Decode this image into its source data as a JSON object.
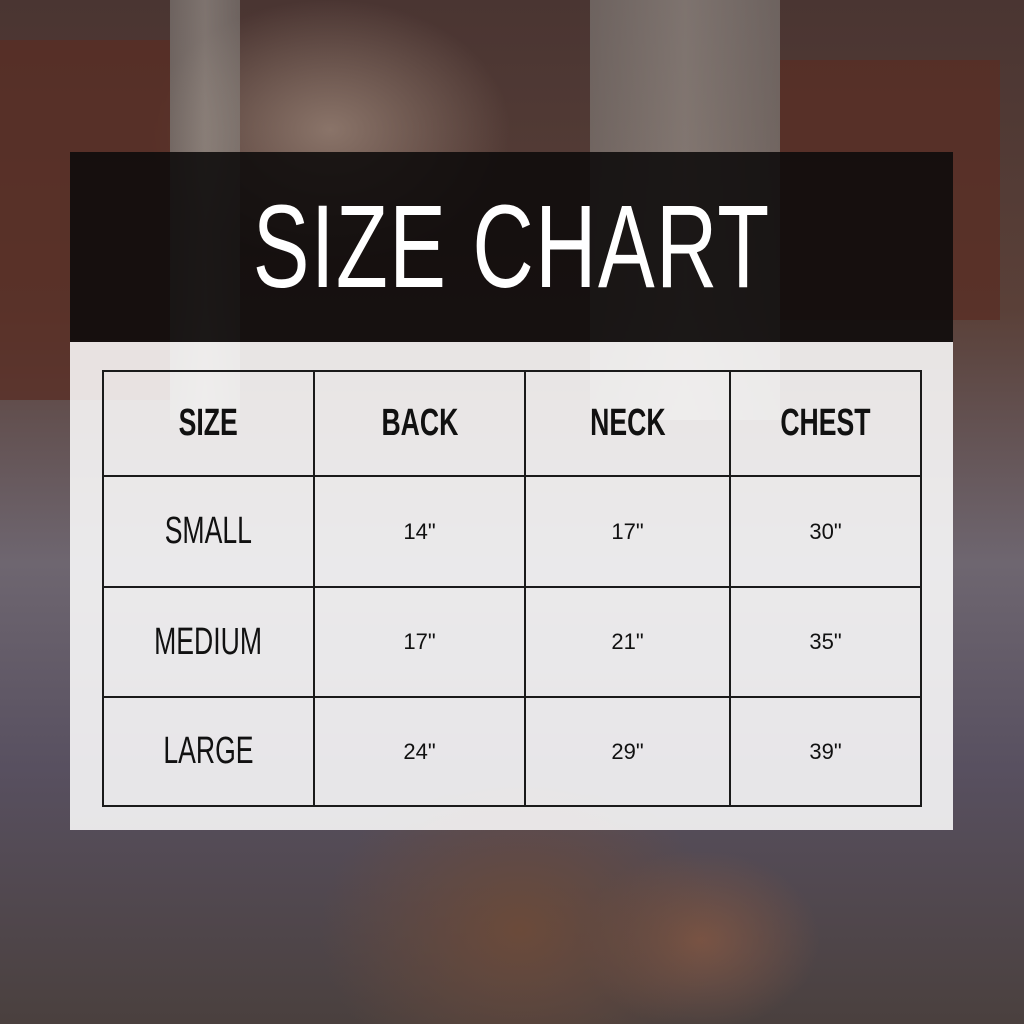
{
  "title": "SIZE CHART",
  "headers": [
    "SIZE",
    "BACK",
    "NECK",
    "CHEST"
  ],
  "rows": [
    {
      "size": "SMALL",
      "back": "14\"",
      "neck": "17\"",
      "chest": "30\""
    },
    {
      "size": "MEDIUM",
      "back": "17\"",
      "neck": "21\"",
      "chest": "35\""
    },
    {
      "size": "LARGE",
      "back": "24\"",
      "neck": "29\"",
      "chest": "39\""
    }
  ]
}
